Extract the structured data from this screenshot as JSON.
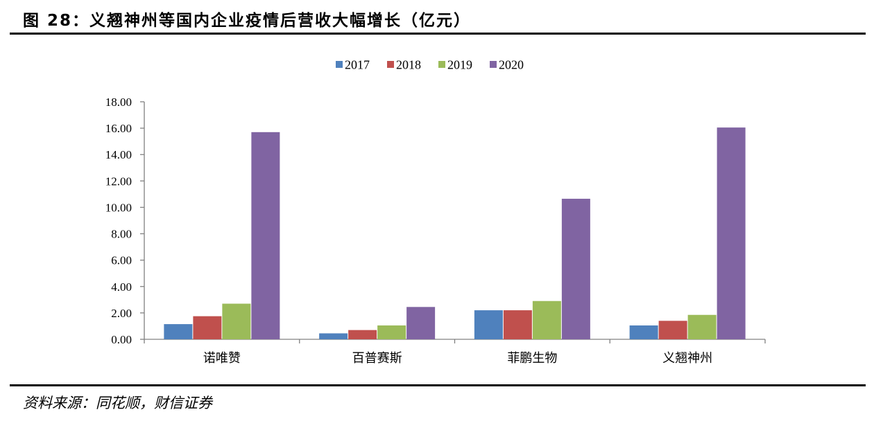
{
  "figure": {
    "title": "图 28：义翘神州等国内企业疫情后营收大幅增长（亿元）",
    "source": "资料来源：同花顺，财信证券"
  },
  "chart_data": {
    "type": "bar",
    "categories": [
      "诺唯赞",
      "百普赛斯",
      "菲鹏生物",
      "义翘神州"
    ],
    "series": [
      {
        "name": "2017",
        "color": "#4F81BD",
        "values": [
          1.15,
          0.45,
          2.2,
          1.05
        ]
      },
      {
        "name": "2018",
        "color": "#C0504D",
        "values": [
          1.75,
          0.7,
          2.2,
          1.4
        ]
      },
      {
        "name": "2019",
        "color": "#9BBB59",
        "values": [
          2.7,
          1.05,
          2.9,
          1.85
        ]
      },
      {
        "name": "2020",
        "color": "#8064A2",
        "values": [
          15.7,
          2.45,
          10.65,
          16.05
        ]
      }
    ],
    "ylim": [
      0,
      18
    ],
    "yticks": [
      "0.00",
      "2.00",
      "4.00",
      "6.00",
      "8.00",
      "10.00",
      "12.00",
      "14.00",
      "16.00",
      "18.00"
    ],
    "legend_position": "top-center",
    "grid": false
  }
}
